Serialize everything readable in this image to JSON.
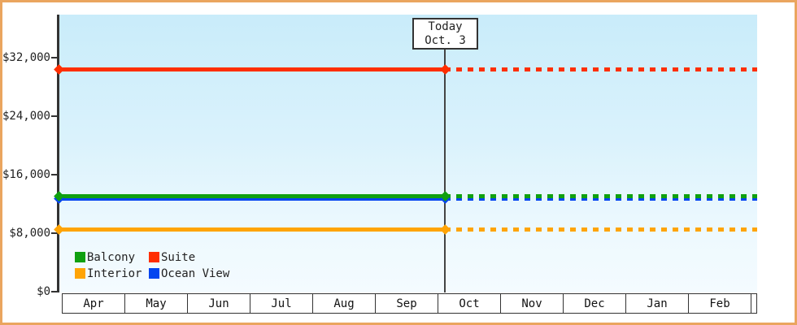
{
  "colors": {
    "frame_border": "#eaa55f",
    "axis": "#333333",
    "text": "#222222",
    "plot_bg_top": "#c9ecfa",
    "plot_bg_bottom": "#f4fbff",
    "today_line": "#444444",
    "today_box_bg": "#ffffff"
  },
  "today_box": {
    "line1": "Today",
    "line2": "Oct. 3"
  },
  "chart_data": {
    "type": "line",
    "title": "",
    "xlabel": "",
    "ylabel": "",
    "x_categories": [
      "Apr",
      "May",
      "Jun",
      "Jul",
      "Aug",
      "Sep",
      "Oct",
      "Nov",
      "Dec",
      "Jan",
      "Feb"
    ],
    "yticks": [
      {
        "label": "$0",
        "value": 0
      },
      {
        "label": "$8,000",
        "value": 8000
      },
      {
        "label": "$16,000",
        "value": 16000
      },
      {
        "label": "$24,000",
        "value": 24000
      },
      {
        "label": "$32,000",
        "value": 32000
      }
    ],
    "ylim": [
      0,
      37900
    ],
    "grid": false,
    "legend_position": "bottom-left-inside",
    "today": {
      "label": "Oct. 3",
      "month": "Oct",
      "day": 3
    },
    "line_style_note": "solid before today, dotted after today; diamond markers at series start and at today",
    "series": [
      {
        "name": "Balcony",
        "color": "#10a010",
        "value": 13100
      },
      {
        "name": "Suite",
        "color": "#ff2e00",
        "value": 30400
      },
      {
        "name": "Interior",
        "color": "#ffa405",
        "value": 8500
      },
      {
        "name": "Ocean View",
        "color": "#0545f0",
        "value": 12700
      }
    ]
  }
}
